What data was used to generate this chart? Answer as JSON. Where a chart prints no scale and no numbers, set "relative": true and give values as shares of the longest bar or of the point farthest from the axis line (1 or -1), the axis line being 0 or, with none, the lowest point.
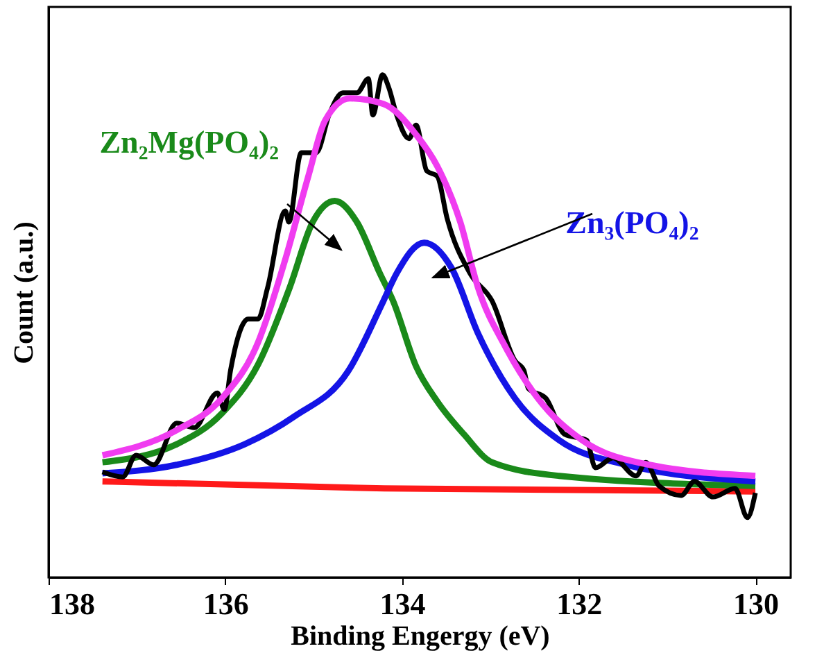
{
  "chart_data": {
    "type": "line",
    "xlabel": "Binding Engergy (eV)",
    "ylabel": "Count (a.u.)",
    "relative": true,
    "xlim": [
      138,
      129.6
    ],
    "xticks": [
      138,
      136,
      134,
      132,
      130
    ],
    "series": [
      {
        "color": "#ff1a1a",
        "x": [
          137.39,
          134.2,
          130.0
        ],
        "values": [
          0.191,
          0.177,
          0.171
        ]
      },
      {
        "name": "Zn₂Mg(PO₄)₂",
        "color": "#1a8a1a",
        "x": [
          137.39,
          136.55,
          136.04,
          135.63,
          135.27,
          135.01,
          134.76,
          134.51,
          134.25,
          134.1,
          133.84,
          133.6,
          133.3,
          132.98,
          132.22,
          130.0
        ],
        "values": [
          0.229,
          0.265,
          0.326,
          0.423,
          0.577,
          0.707,
          0.749,
          0.707,
          0.605,
          0.55,
          0.42,
          0.35,
          0.285,
          0.229,
          0.202,
          0.182
        ]
      },
      {
        "name": "Zn₃(PO₄)₂",
        "color": "#1414e6",
        "x": [
          137.39,
          136.55,
          135.78,
          135.22,
          134.61,
          134.21,
          134.06,
          133.75,
          133.44,
          133.14,
          132.72,
          132.22,
          131.46,
          130.0
        ],
        "values": [
          0.207,
          0.224,
          0.265,
          0.32,
          0.41,
          0.55,
          0.605,
          0.666,
          0.616,
          0.486,
          0.356,
          0.273,
          0.224,
          0.191
        ]
      },
      {
        "color": "#000000",
        "x": [
          137.39,
          137.16,
          137.01,
          136.81,
          136.55,
          136.35,
          136.09,
          136.01,
          135.94,
          135.74,
          135.63,
          135.52,
          135.32,
          135.28,
          135.14,
          134.97,
          134.82,
          134.67,
          134.51,
          134.38,
          134.33,
          134.22,
          134.15,
          134.06,
          133.92,
          133.84,
          133.72,
          133.6,
          133.49,
          133.23,
          132.98,
          132.72,
          132.62,
          132.57,
          132.37,
          132.16,
          131.91,
          131.81,
          131.61,
          131.35,
          131.24,
          131.09,
          130.84,
          130.69,
          130.48,
          130.23,
          130.09,
          130.0
        ],
        "values": [
          0.21,
          0.2,
          0.243,
          0.224,
          0.307,
          0.298,
          0.367,
          0.334,
          0.412,
          0.514,
          0.514,
          0.577,
          0.729,
          0.707,
          0.845,
          0.845,
          0.923,
          0.964,
          0.964,
          0.992,
          0.92,
          1.0,
          0.975,
          0.92,
          0.873,
          0.9,
          0.809,
          0.798,
          0.715,
          0.605,
          0.55,
          0.431,
          0.412,
          0.376,
          0.356,
          0.285,
          0.273,
          0.218,
          0.238,
          0.202,
          0.229,
          0.182,
          0.163,
          0.191,
          0.16,
          0.177,
          0.119,
          0.168
        ]
      },
      {
        "color": "#f03cf0",
        "x": [
          137.39,
          136.55,
          136.04,
          135.63,
          135.32,
          135.06,
          134.87,
          134.59,
          134.21,
          133.84,
          133.6,
          133.34,
          133.14,
          132.83,
          132.46,
          131.96,
          131.2,
          130.0
        ],
        "values": [
          0.243,
          0.293,
          0.356,
          0.467,
          0.633,
          0.798,
          0.909,
          0.953,
          0.942,
          0.881,
          0.818,
          0.707,
          0.577,
          0.459,
          0.356,
          0.273,
          0.224,
          0.202
        ]
      }
    ]
  }
}
